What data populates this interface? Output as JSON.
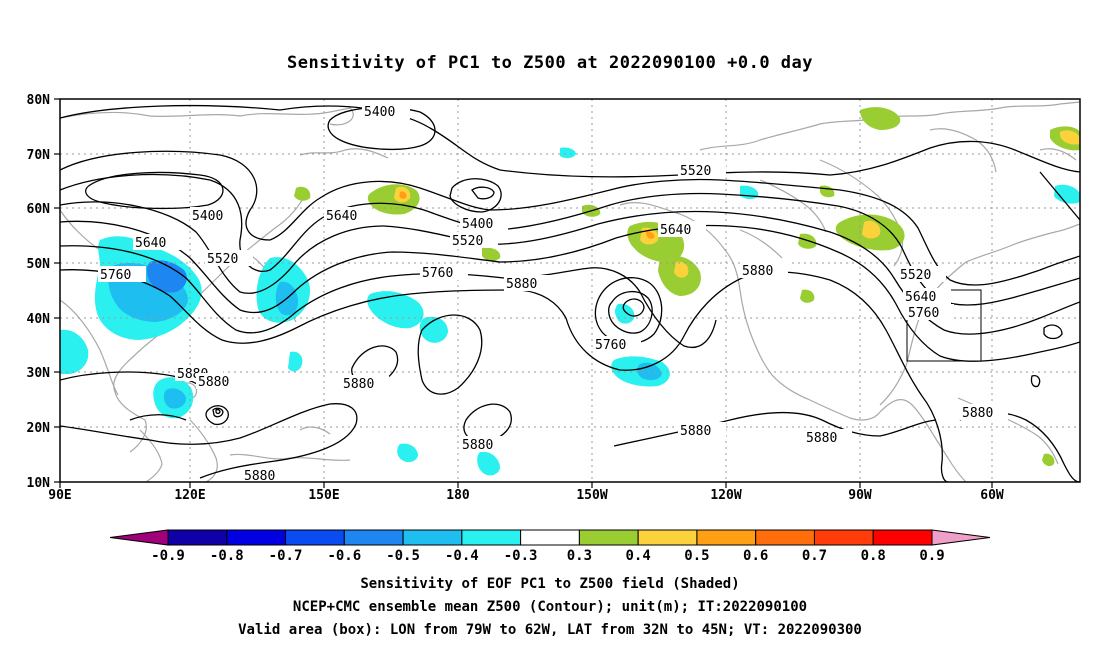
{
  "title": "Sensitivity of PC1 to Z500 at 2022090100 +0.0 day",
  "map": {
    "lat_ticks": [
      "80N",
      "70N",
      "60N",
      "50N",
      "40N",
      "30N",
      "20N",
      "10N"
    ],
    "lon_ticks": [
      "90E",
      "120E",
      "150E",
      "180",
      "150W",
      "120W",
      "90W",
      "60W"
    ],
    "contour_labels": [
      {
        "text": "5400"
      },
      {
        "text": "5400"
      },
      {
        "text": "5400"
      },
      {
        "text": "5520"
      },
      {
        "text": "5520"
      },
      {
        "text": "5520"
      },
      {
        "text": "5520"
      },
      {
        "text": "5640"
      },
      {
        "text": "5640"
      },
      {
        "text": "5640"
      },
      {
        "text": "5640"
      },
      {
        "text": "5760"
      },
      {
        "text": "5760"
      },
      {
        "text": "5760"
      },
      {
        "text": "5760"
      },
      {
        "text": "5880"
      },
      {
        "text": "5880"
      },
      {
        "text": "5880"
      },
      {
        "text": "5880"
      },
      {
        "text": "5880"
      },
      {
        "text": "5880"
      },
      {
        "text": "5880"
      },
      {
        "text": "5880"
      },
      {
        "text": "5880"
      },
      {
        "text": "5880"
      }
    ],
    "valid_box": {
      "lon_west": "79W",
      "lon_east": "62W",
      "lat_south": "32N",
      "lat_north": "45N"
    }
  },
  "colorbar": {
    "labels": [
      "-0.9",
      "-0.8",
      "-0.7",
      "-0.6",
      "-0.5",
      "-0.4",
      "-0.3",
      "0.3",
      "0.4",
      "0.5",
      "0.6",
      "0.7",
      "0.8",
      "0.9"
    ],
    "colors": [
      "#a0007a",
      "#1000a8",
      "#0000e0",
      "#0a4cf0",
      "#1e86f0",
      "#1ebef0",
      "#2af0f0",
      "#ffffff",
      "#9acd32",
      "#fcd23c",
      "#ffa014",
      "#ff6e0a",
      "#ff3c0a",
      "#ff0000",
      "#f0a0c8"
    ]
  },
  "captions": [
    "Sensitivity of EOF PC1 to Z500 field (Shaded)",
    "NCEP+CMC ensemble mean Z500 (Contour); unit(m); IT:2022090100",
    "Valid area (box): LON from 79W to 62W, LAT from 32N to 45N; VT: 2022090300"
  ]
}
